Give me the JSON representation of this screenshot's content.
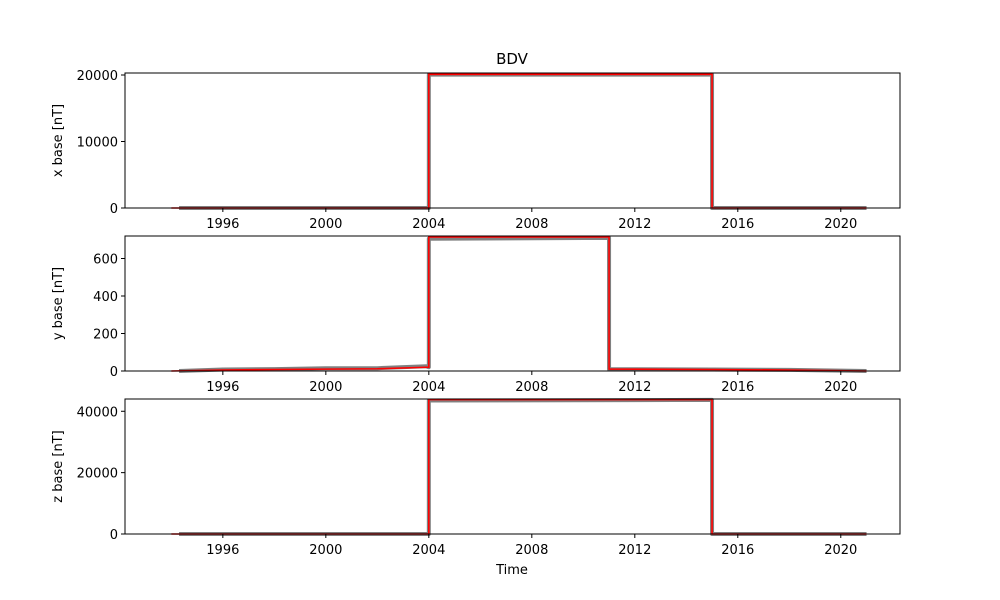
{
  "chart_data": {
    "title": "BDV",
    "xlabel": "Time",
    "type": "line",
    "x_tick_labels": [
      "1996",
      "2000",
      "2004",
      "2008",
      "2012",
      "2016",
      "2020"
    ],
    "colors": {
      "line": "#ff0000",
      "scatter": "#555555"
    },
    "panels": [
      {
        "ylabel": "x base [nT]",
        "ylim": [
          0,
          20300
        ],
        "y_ticks": [
          0,
          10000,
          20000
        ],
        "y_tick_labels": [
          "0",
          "10000",
          "20000"
        ],
        "series": [
          {
            "type": "line",
            "x": [
              1994.0,
              2004.0,
              2004.0,
              2015.0,
              2015.0,
              2021.0
            ],
            "y": [
              0,
              0,
              20100,
              20100,
              0,
              0
            ]
          },
          {
            "type": "scatter",
            "x": [
              1994.3,
              2004.0,
              2004.0,
              2015.0,
              2015.0,
              2021.0
            ],
            "y": [
              0,
              0,
              20050,
              20050,
              0,
              0
            ]
          }
        ]
      },
      {
        "ylabel": "y base [nT]",
        "ylim": [
          0,
          720
        ],
        "y_ticks": [
          0,
          200,
          400,
          600
        ],
        "y_tick_labels": [
          "0",
          "200",
          "400",
          "600"
        ],
        "series": [
          {
            "type": "line",
            "x": [
              1994.0,
              1996.0,
              1998.0,
              2000.0,
              2002.0,
              2003.9,
              2004.0,
              2004.0,
              2011.0,
              2011.0,
              2015.0,
              2018.0,
              2021.0
            ],
            "y": [
              0,
              5,
              8,
              10,
              12,
              20,
              20,
              715,
              715,
              10,
              8,
              5,
              0
            ]
          },
          {
            "type": "scatter",
            "x": [
              1994.3,
              1996.0,
              1998.0,
              2000.0,
              2002.0,
              2003.9,
              2004.0,
              2004.0,
              2011.0,
              2011.0,
              2015.0,
              2018.0,
              2021.0
            ],
            "y": [
              0,
              8,
              10,
              15,
              15,
              25,
              20,
              705,
              710,
              10,
              8,
              6,
              0
            ]
          }
        ]
      },
      {
        "ylabel": "z base [nT]",
        "ylim": [
          0,
          44000
        ],
        "y_ticks": [
          0,
          20000,
          40000
        ],
        "y_tick_labels": [
          "0",
          "20000",
          "40000"
        ],
        "series": [
          {
            "type": "line",
            "x": [
              1994.0,
              2004.0,
              2004.0,
              2015.0,
              2015.0,
              2021.0
            ],
            "y": [
              0,
              0,
              43800,
              43800,
              0,
              0
            ]
          },
          {
            "type": "scatter",
            "x": [
              1994.3,
              2004.0,
              2004.0,
              2015.0,
              2015.0,
              2021.0
            ],
            "y": [
              0,
              0,
              43500,
              43700,
              0,
              0
            ]
          }
        ]
      }
    ]
  }
}
